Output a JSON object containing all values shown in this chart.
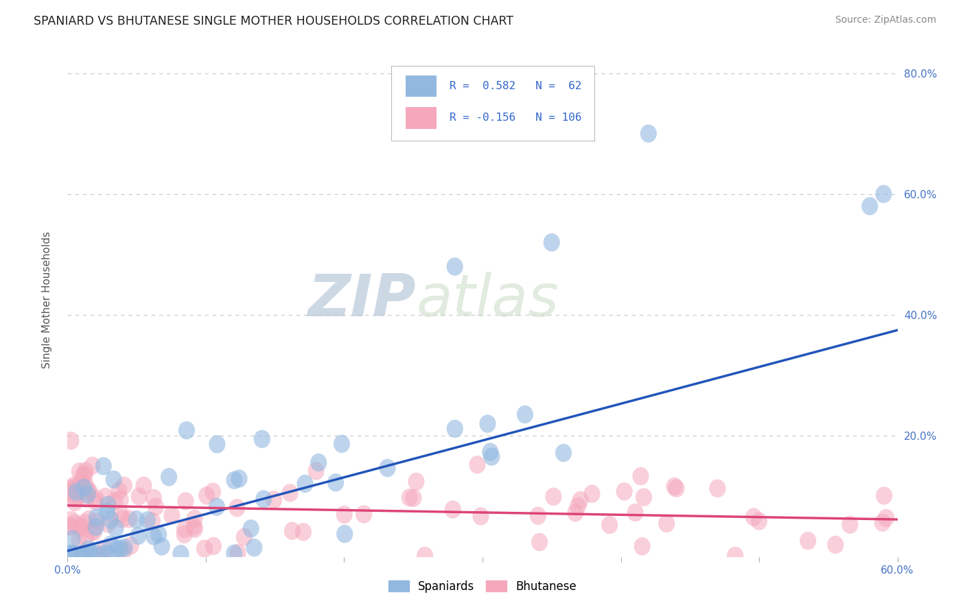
{
  "title": "SPANIARD VS BHUTANESE SINGLE MOTHER HOUSEHOLDS CORRELATION CHART",
  "source_text": "Source: ZipAtlas.com",
  "ylabel": "Single Mother Households",
  "xlabel": "",
  "xlim": [
    0.0,
    0.6
  ],
  "ylim": [
    0.0,
    0.85
  ],
  "spaniard_R": 0.582,
  "spaniard_N": 62,
  "bhutanese_R": -0.156,
  "bhutanese_N": 106,
  "spaniard_color": "#92b8e0",
  "bhutanese_color": "#f5a8bc",
  "spaniard_line_color": "#2255bb",
  "bhutanese_line_color": "#dd4477",
  "title_color": "#222222",
  "grid_color": "#c8c8c8",
  "watermark_color": "#c5d5e8",
  "background_color": "#ffffff",
  "sp_line_x0": 0.0,
  "sp_line_y0": 0.01,
  "sp_line_x1": 0.6,
  "sp_line_y1": 0.375,
  "bh_line_x0": 0.0,
  "bh_line_y0": 0.085,
  "bh_line_x1": 0.6,
  "bh_line_y1": 0.062
}
